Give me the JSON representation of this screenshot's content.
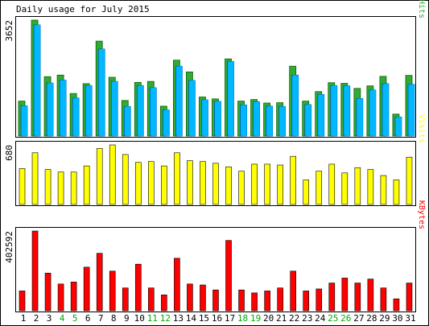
{
  "chart_data": {
    "type": "bar",
    "title": "Daily usage for July 2015",
    "days": [
      "1",
      "2",
      "3",
      "4",
      "5",
      "6",
      "7",
      "8",
      "9",
      "10",
      "11",
      "12",
      "13",
      "14",
      "15",
      "16",
      "17",
      "18",
      "19",
      "20",
      "21",
      "22",
      "23",
      "24",
      "25",
      "26",
      "27",
      "28",
      "29",
      "30",
      "31"
    ],
    "weekend_days": [
      4,
      5,
      11,
      12,
      18,
      19,
      25,
      26
    ],
    "colors": {
      "hits": "#33aa33",
      "files": "#00b8ff",
      "pages": "#00b8ff",
      "visits": "#ffff00",
      "kbytes": "#ff0000",
      "weekend_label": "#00aa00",
      "weekday_label": "#000000"
    },
    "panels": [
      {
        "id": "top",
        "max_label": "3652",
        "ymax": 3652,
        "legend": [
          {
            "text": "Pages",
            "color": "#00b8ff"
          },
          {
            "text": "/",
            "color": "#000000"
          },
          {
            "text": "Files",
            "color": "#00b8ff"
          },
          {
            "text": "/",
            "color": "#000000"
          },
          {
            "text": "Hits",
            "color": "#33aa33"
          }
        ],
        "series": [
          {
            "key": "hits",
            "values": [
              1100,
              3652,
              1870,
              1920,
              1340,
              1650,
              2990,
              1850,
              1120,
              1690,
              1720,
              940,
              2390,
              2020,
              1230,
              1170,
              2430,
              1100,
              1150,
              1040,
              1050,
              2200,
              1100,
              1400,
              1680,
              1660,
              1500,
              1580,
              1880,
              690,
              1910
            ]
          },
          {
            "key": "files",
            "values": [
              950,
              3500,
              1670,
              1760,
              1200,
              1590,
              2740,
              1720,
              930,
              1590,
              1520,
              820,
              2200,
              1750,
              1140,
              1090,
              2350,
              980,
              1080,
              940,
              930,
              1920,
              990,
              1310,
              1590,
              1580,
              1180,
              1450,
              1650,
              600,
              1630
            ]
          },
          {
            "key": "pages",
            "values": [
              950,
              3500,
              1670,
              1760,
              1200,
              1590,
              2740,
              1720,
              930,
              1590,
              1520,
              820,
              2200,
              1750,
              1140,
              1090,
              2350,
              980,
              1080,
              940,
              930,
              1920,
              990,
              1310,
              1590,
              1580,
              1180,
              1450,
              1650,
              600,
              1630
            ]
          }
        ]
      },
      {
        "id": "mid",
        "max_label": "680",
        "ymax": 680,
        "legend": [
          {
            "text": "Visits",
            "color": "#ffff00"
          }
        ],
        "series": [
          {
            "key": "visits",
            "values": [
              410,
              590,
              400,
              370,
              370,
              440,
              640,
              680,
              570,
              480,
              490,
              440,
              590,
              500,
              490,
              470,
              430,
              380,
              460,
              460,
              450,
              550,
              280,
              380,
              460,
              360,
              420,
              400,
              330,
              280,
              540
            ]
          }
        ]
      },
      {
        "id": "bottom",
        "max_label": "402592",
        "ymax": 402592,
        "legend": [
          {
            "text": "KBytes",
            "color": "#ff0000"
          }
        ],
        "series": [
          {
            "key": "kbytes",
            "values": [
              100000,
              402592,
              190000,
              135000,
              145000,
              220000,
              290000,
              200000,
              115000,
              235000,
              115000,
              80000,
              265000,
              135000,
              130000,
              105000,
              355000,
              105000,
              90000,
              100000,
              115000,
              200000,
              100000,
              110000,
              140000,
              165000,
              140000,
              160000,
              115000,
              60000,
              140000
            ]
          }
        ]
      }
    ]
  }
}
